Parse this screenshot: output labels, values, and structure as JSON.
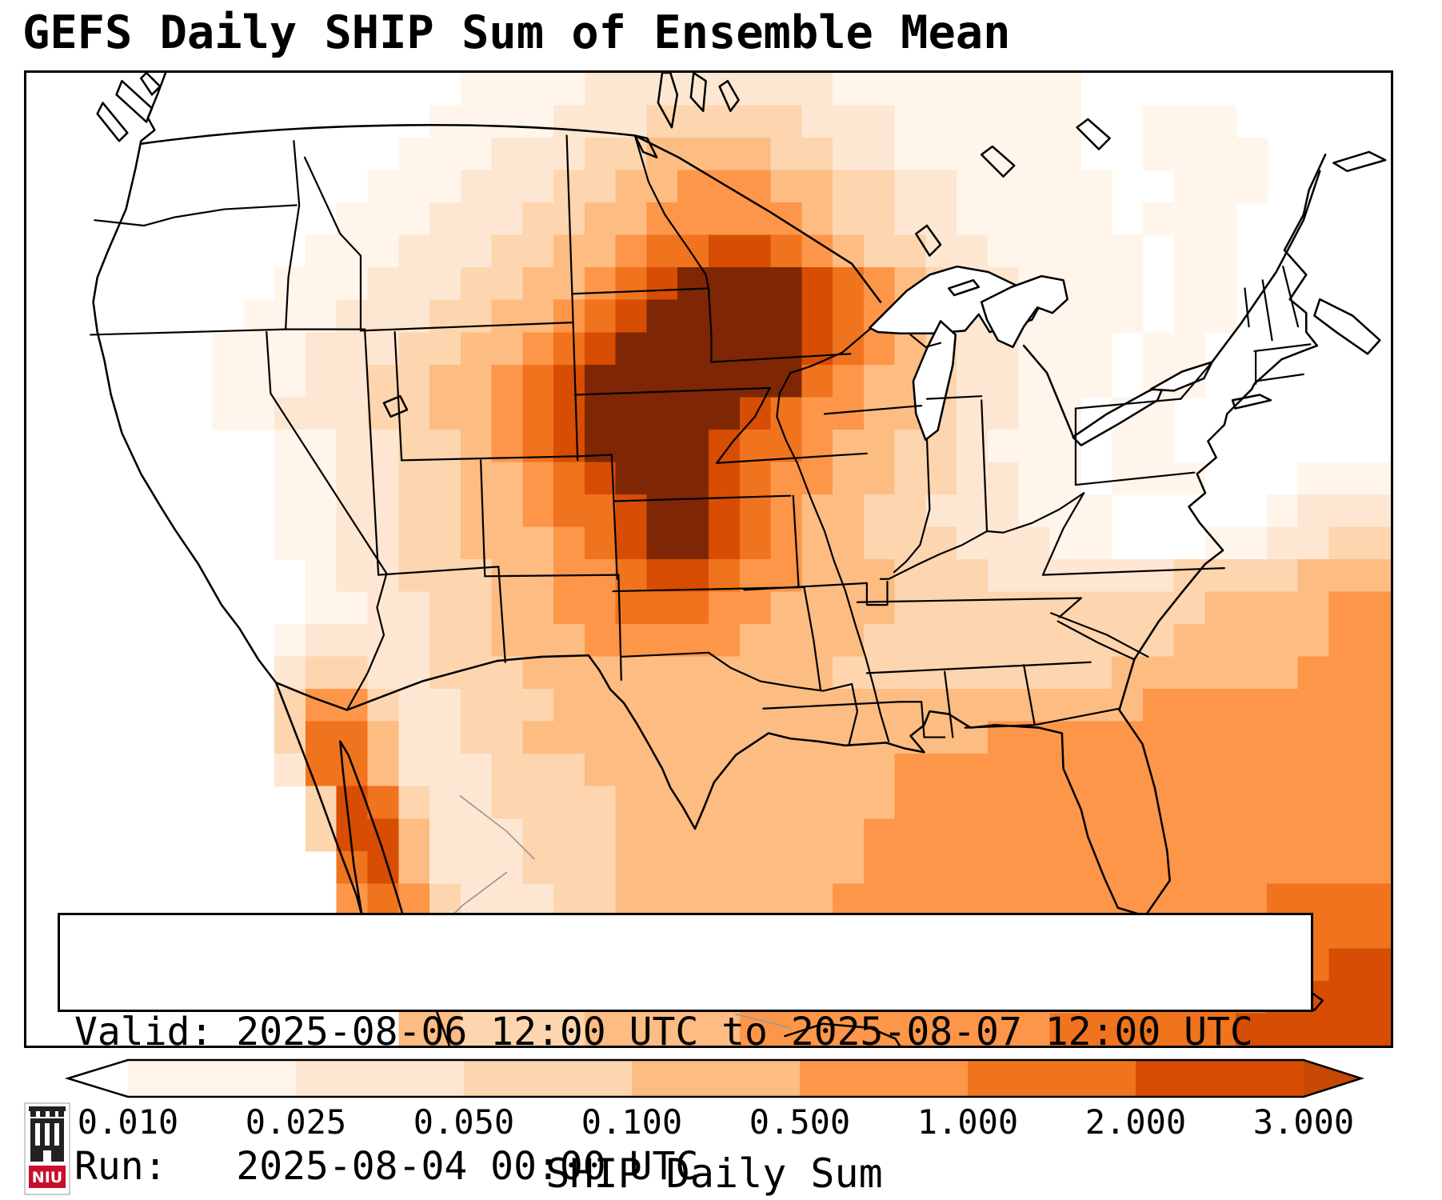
{
  "title": "GEFS Daily SHIP Sum of Ensemble Mean",
  "info_box": {
    "valid_line": "Valid: 2025-08-06 12:00 UTC to 2025-08-07 12:00 UTC",
    "run_line": "Run:   2025-08-04 00:00 UTC"
  },
  "logo": {
    "text": "NIU",
    "red": "#c8102e"
  },
  "chart_data": {
    "type": "heatmap",
    "title": "GEFS Daily SHIP Sum of Ensemble Mean",
    "colorbar_label": "SHIP Daily Sum",
    "levels": [
      0.01,
      0.025,
      0.05,
      0.1,
      0.5,
      1.0,
      2.0,
      3.0
    ],
    "tick_labels": [
      "0.010",
      "0.025",
      "0.050",
      "0.100",
      "0.500",
      "1.000",
      "2.000",
      "3.000"
    ],
    "extend": "both",
    "under_color": "#ffffff",
    "over_color": "#c64802",
    "bin_colors": [
      "#fff5eb",
      "#fee7d2",
      "#fdd5ae",
      "#fdbc82",
      "#fd9649",
      "#f0731e",
      "#d64d03"
    ],
    "value_colors": [
      "#ffffff",
      "#fff5eb",
      "#fee7d2",
      "#fdd5ae",
      "#fdbc82",
      "#fd9649",
      "#f0731e",
      "#d64d03",
      "#7f2704"
    ],
    "grid": {
      "cols": 44,
      "rows": 30,
      "encoding": "each character 0-8 indexes value_colors; 0 means below lowest level (white)",
      "rows_data": [
        "00000000000000111122222222111111110000000000",
        "00000000000001111222333332221111110011100000",
        "00000000000011122233444433221111110011110000",
        "00000000000111222334455544332211111001110000",
        "00000000001112223344555554332211111011100000",
        "00000000011122233445667765433221111101100000",
        "00000000111222334456788887654322111101100000",
        "00000001112223344567888887654322111101100000",
        "00000011122233445678888887654322111011000000",
        "00000011122334456788888886544322111011000000",
        "00000011222334456788888765544322110110000000",
        "00000000112233456788887665443321110110000000",
        "00000000112233445678887655443322110111000111",
        "00000000112233445667887654433222111000001222",
        "00000000112233444567887654433322211000112233",
        "00000000012233344556776554443332222223333444",
        "00000000011223344556665544443333333333444455",
        "00000000122223344455555444433333333334444455",
        "00000000233223334444444444333333333444444555",
        "00000000355322333444444444444444444455555555",
        "00000000366422334444444444444445555555555555",
        "00000000266422233344444444445555555555555555",
        "00000000037632233334444444445555555555555555",
        "00000000037742223334444444455555555555555555",
        "00000000006742223334444444455555555555555555",
        "00000000005653222334444444555555555555556666",
        "00000000000553222334444445555555555555666666",
        "00000000000454322334444455555555555566666677",
        "00000000000044333344444555555555556666667777",
        "00000000000044333344444555555555566666677777"
      ]
    }
  }
}
